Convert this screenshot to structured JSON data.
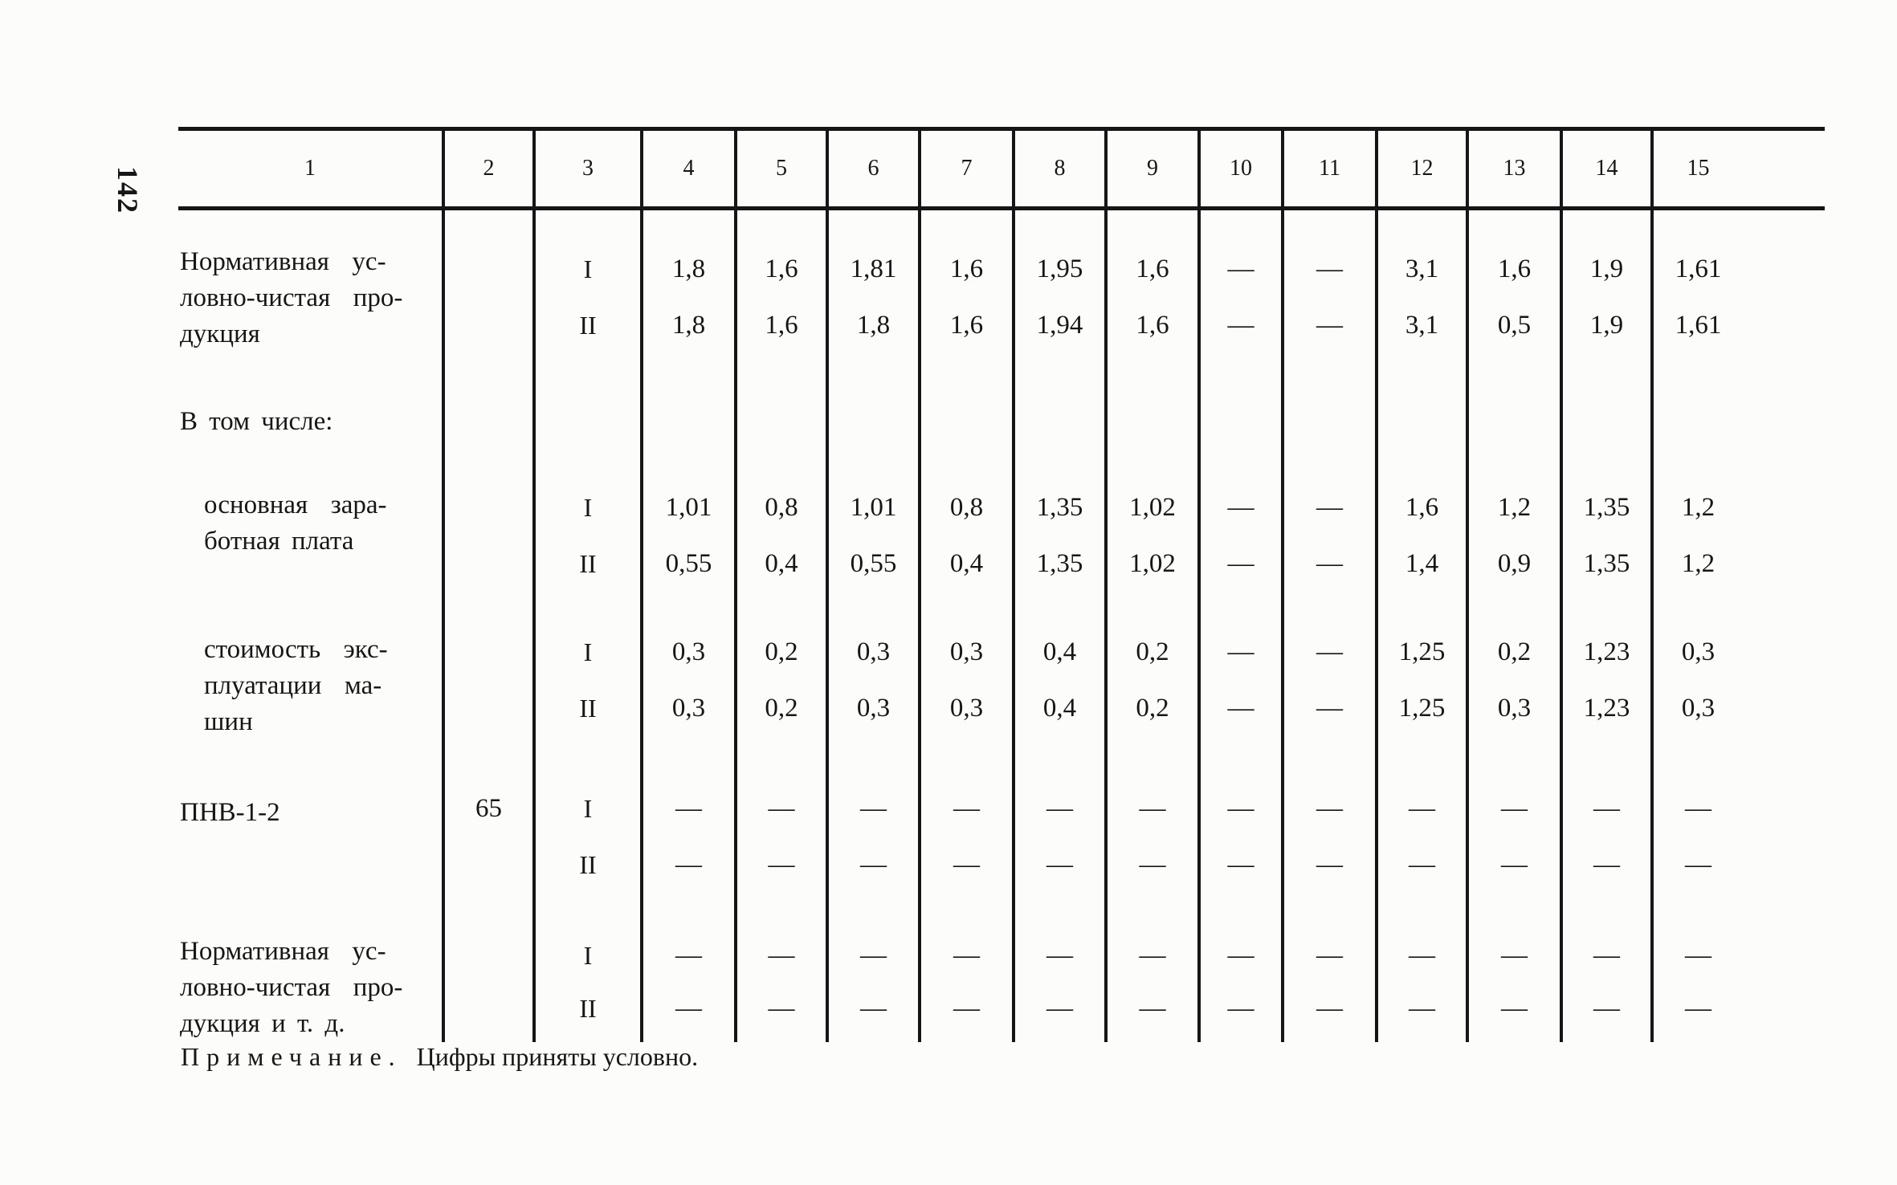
{
  "page": {
    "number": "142"
  },
  "note": {
    "label": "Примечание.",
    "text": "Цифры приняты условно."
  },
  "table": {
    "column_headers": [
      "1",
      "2",
      "3",
      "4",
      "5",
      "6",
      "7",
      "8",
      "9",
      "10",
      "11",
      "12",
      "13",
      "14",
      "15"
    ],
    "rows": [
      {
        "label": "Нормативная  ус-\nловно-чистая  про-\nдукция",
        "col2": "",
        "subrows": [
          {
            "variant": "I",
            "values": [
              "1,8",
              "1,6",
              "1,81",
              "1,6",
              "1,95",
              "1,6",
              "—",
              "—",
              "3,1",
              "1,6",
              "1,9",
              "1,61"
            ]
          },
          {
            "variant": "II",
            "values": [
              "1,8",
              "1,6",
              "1,8",
              "1,6",
              "1,94",
              "1,6",
              "—",
              "—",
              "3,1",
              "0,5",
              "1,9",
              "1,61"
            ]
          }
        ]
      },
      {
        "label": "В том числе:",
        "col2": "",
        "subrows": []
      },
      {
        "label": "основная  зара-\nботная плата",
        "col2": "",
        "subrows": [
          {
            "variant": "I",
            "values": [
              "1,01",
              "0,8",
              "1,01",
              "0,8",
              "1,35",
              "1,02",
              "—",
              "—",
              "1,6",
              "1,2",
              "1,35",
              "1,2"
            ]
          },
          {
            "variant": "II",
            "values": [
              "0,55",
              "0,4",
              "0,55",
              "0,4",
              "1,35",
              "1,02",
              "—",
              "—",
              "1,4",
              "0,9",
              "1,35",
              "1,2"
            ]
          }
        ]
      },
      {
        "label": "стоимость  экс-\nплуатации  ма-\nшин",
        "col2": "",
        "subrows": [
          {
            "variant": "I",
            "values": [
              "0,3",
              "0,2",
              "0,3",
              "0,3",
              "0,4",
              "0,2",
              "—",
              "—",
              "1,25",
              "0,2",
              "1,23",
              "0,3"
            ]
          },
          {
            "variant": "II",
            "values": [
              "0,3",
              "0,2",
              "0,3",
              "0,3",
              "0,4",
              "0,2",
              "—",
              "—",
              "1,25",
              "0,3",
              "1,23",
              "0,3"
            ]
          }
        ]
      },
      {
        "label": "ПНВ-1-2",
        "col2": "65",
        "subrows": [
          {
            "variant": "I",
            "values": [
              "—",
              "—",
              "—",
              "—",
              "—",
              "—",
              "—",
              "—",
              "—",
              "—",
              "—",
              "—"
            ]
          },
          {
            "variant": "II",
            "values": [
              "—",
              "—",
              "—",
              "—",
              "—",
              "—",
              "—",
              "—",
              "—",
              "—",
              "—",
              "—"
            ]
          }
        ]
      },
      {
        "label": "Нормативная  ус-\nловно-чистая  про-\nдукция и т. д.",
        "col2": "",
        "subrows": [
          {
            "variant": "I",
            "values": [
              "—",
              "—",
              "—",
              "—",
              "—",
              "—",
              "—",
              "—",
              "—",
              "—",
              "—",
              "—"
            ]
          },
          {
            "variant": "II",
            "values": [
              "—",
              "—",
              "—",
              "—",
              "—",
              "—",
              "—",
              "—",
              "—",
              "—",
              "—",
              "—"
            ]
          }
        ]
      }
    ]
  }
}
